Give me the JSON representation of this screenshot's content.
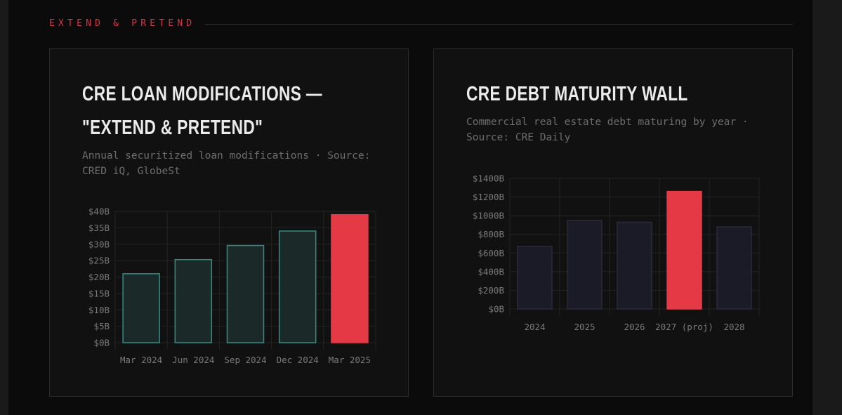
{
  "section": {
    "label": "EXTEND & PRETEND"
  },
  "cards": [
    {
      "title": "CRE LOAN MODIFICATIONS — \"EXTEND & PRETEND\"",
      "subtitle": "Annual securitized loan modifications · Source: CRED iQ, GlobeSt"
    },
    {
      "title": "CRE DEBT MATURITY WALL",
      "subtitle": "Commercial real estate debt maturing by year · Source: CRE Daily"
    }
  ],
  "colors": {
    "accent": "#e63946",
    "teal_fill": "#1b2a28",
    "teal_stroke": "#2e8f85",
    "navy_fill": "#1b1a27",
    "navy_stroke": "#2b2a3a",
    "grid": "#232323"
  },
  "chart_data": [
    {
      "type": "bar",
      "title": "CRE LOAN MODIFICATIONS — \"EXTEND & PRETEND\"",
      "subtitle": "Annual securitized loan modifications · Source: CRED iQ, GlobeSt",
      "categories": [
        "Mar 2024",
        "Jun 2024",
        "Sep 2024",
        "Dec 2024",
        "Mar 2025"
      ],
      "values": [
        21,
        25.3,
        29.6,
        34,
        39
      ],
      "highlight_index": 4,
      "unit": "B",
      "ylim": [
        0,
        40
      ],
      "yticks": [
        0,
        5,
        10,
        15,
        20,
        25,
        30,
        35,
        40
      ],
      "ytick_labels": [
        "$0B",
        "$5B",
        "$10B",
        "$15B",
        "$20B",
        "$25B",
        "$30B",
        "$35B",
        "$40B"
      ],
      "xlabel": "",
      "ylabel": "",
      "grid": true,
      "legend": false
    },
    {
      "type": "bar",
      "title": "CRE DEBT MATURITY WALL",
      "subtitle": "Commercial real estate debt maturing by year · Source: CRE Daily",
      "categories": [
        "2024",
        "2025",
        "2026",
        "2027 (proj)",
        "2028"
      ],
      "values": [
        670,
        950,
        930,
        1260,
        880
      ],
      "highlight_index": 3,
      "unit": "B",
      "ylim": [
        0,
        1400
      ],
      "yticks": [
        0,
        200,
        400,
        600,
        800,
        1000,
        1200,
        1400
      ],
      "ytick_labels": [
        "$0B",
        "$200B",
        "$400B",
        "$600B",
        "$800B",
        "$1000B",
        "$1200B",
        "$1400B"
      ],
      "xlabel": "",
      "ylabel": "",
      "grid": true,
      "legend": false
    }
  ]
}
